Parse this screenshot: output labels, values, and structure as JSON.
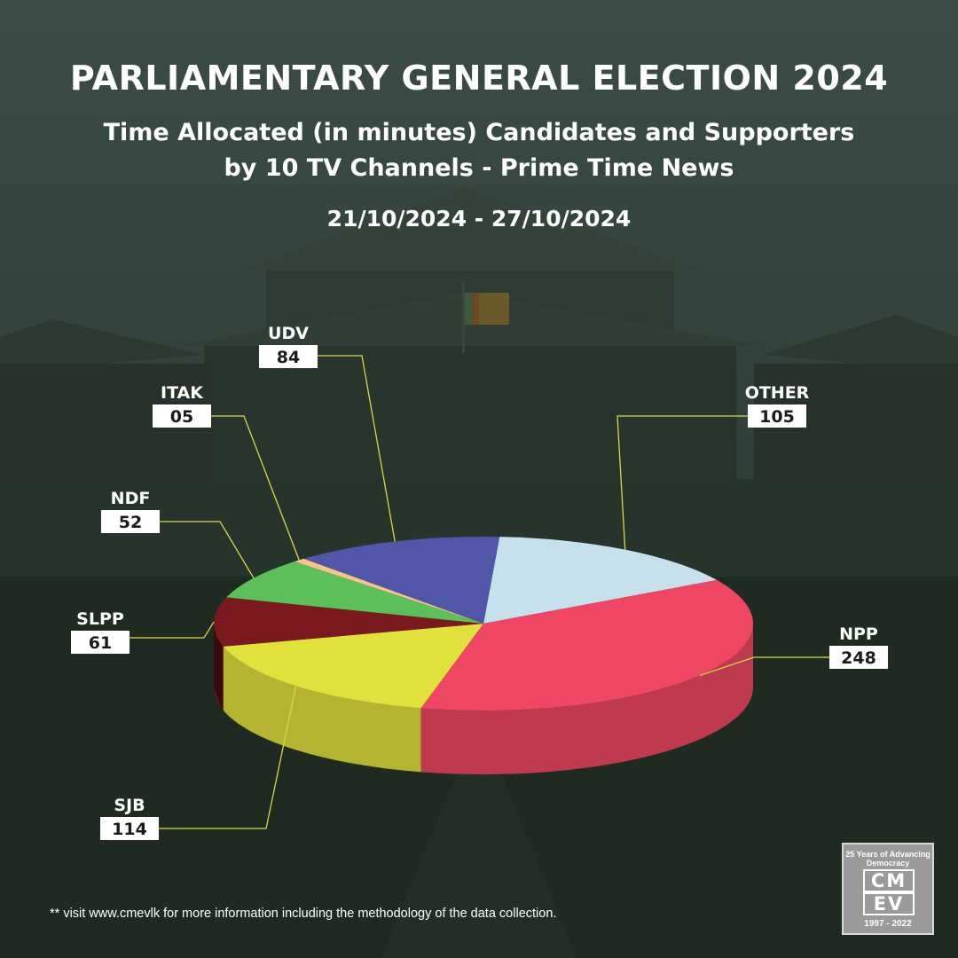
{
  "header": {
    "title": "PARLIAMENTARY GENERAL ELECTION 2024",
    "subtitle_line1": "Time Allocated (in minutes) Candidates and Supporters",
    "subtitle_line2": "by 10 TV Channels - Prime Time News",
    "date_range": "21/10/2024 - 27/10/2024"
  },
  "chart_data": {
    "type": "pie",
    "title": "Time Allocated (in minutes) Candidates and Supporters by 10 TV Channels - Prime Time News",
    "unit": "minutes",
    "slices": [
      {
        "name": "OTHER",
        "value": 105,
        "display": "105",
        "color": "#c6e1ec"
      },
      {
        "name": "NPP",
        "value": 248,
        "display": "248",
        "color": "#ef4763"
      },
      {
        "name": "SJB",
        "value": 114,
        "display": "114",
        "color": "#e1e13c"
      },
      {
        "name": "SLPP",
        "value": 61,
        "display": "61",
        "color": "#7a1a1f"
      },
      {
        "name": "NDF",
        "value": 52,
        "display": "52",
        "color": "#5cc05a"
      },
      {
        "name": "ITAK",
        "value": 5,
        "display": "05",
        "color": "#f6c58a"
      },
      {
        "name": "UDV",
        "value": 84,
        "display": "84",
        "color": "#5256a8"
      }
    ]
  },
  "footnote": "** visit www.cmevlk for more information including the methodology of the data collection.",
  "logo": {
    "arc_text": "25 Years of Advancing Democracy",
    "letters_top": "CM",
    "letters_bottom": "EV",
    "years": "1997 - 2022"
  }
}
